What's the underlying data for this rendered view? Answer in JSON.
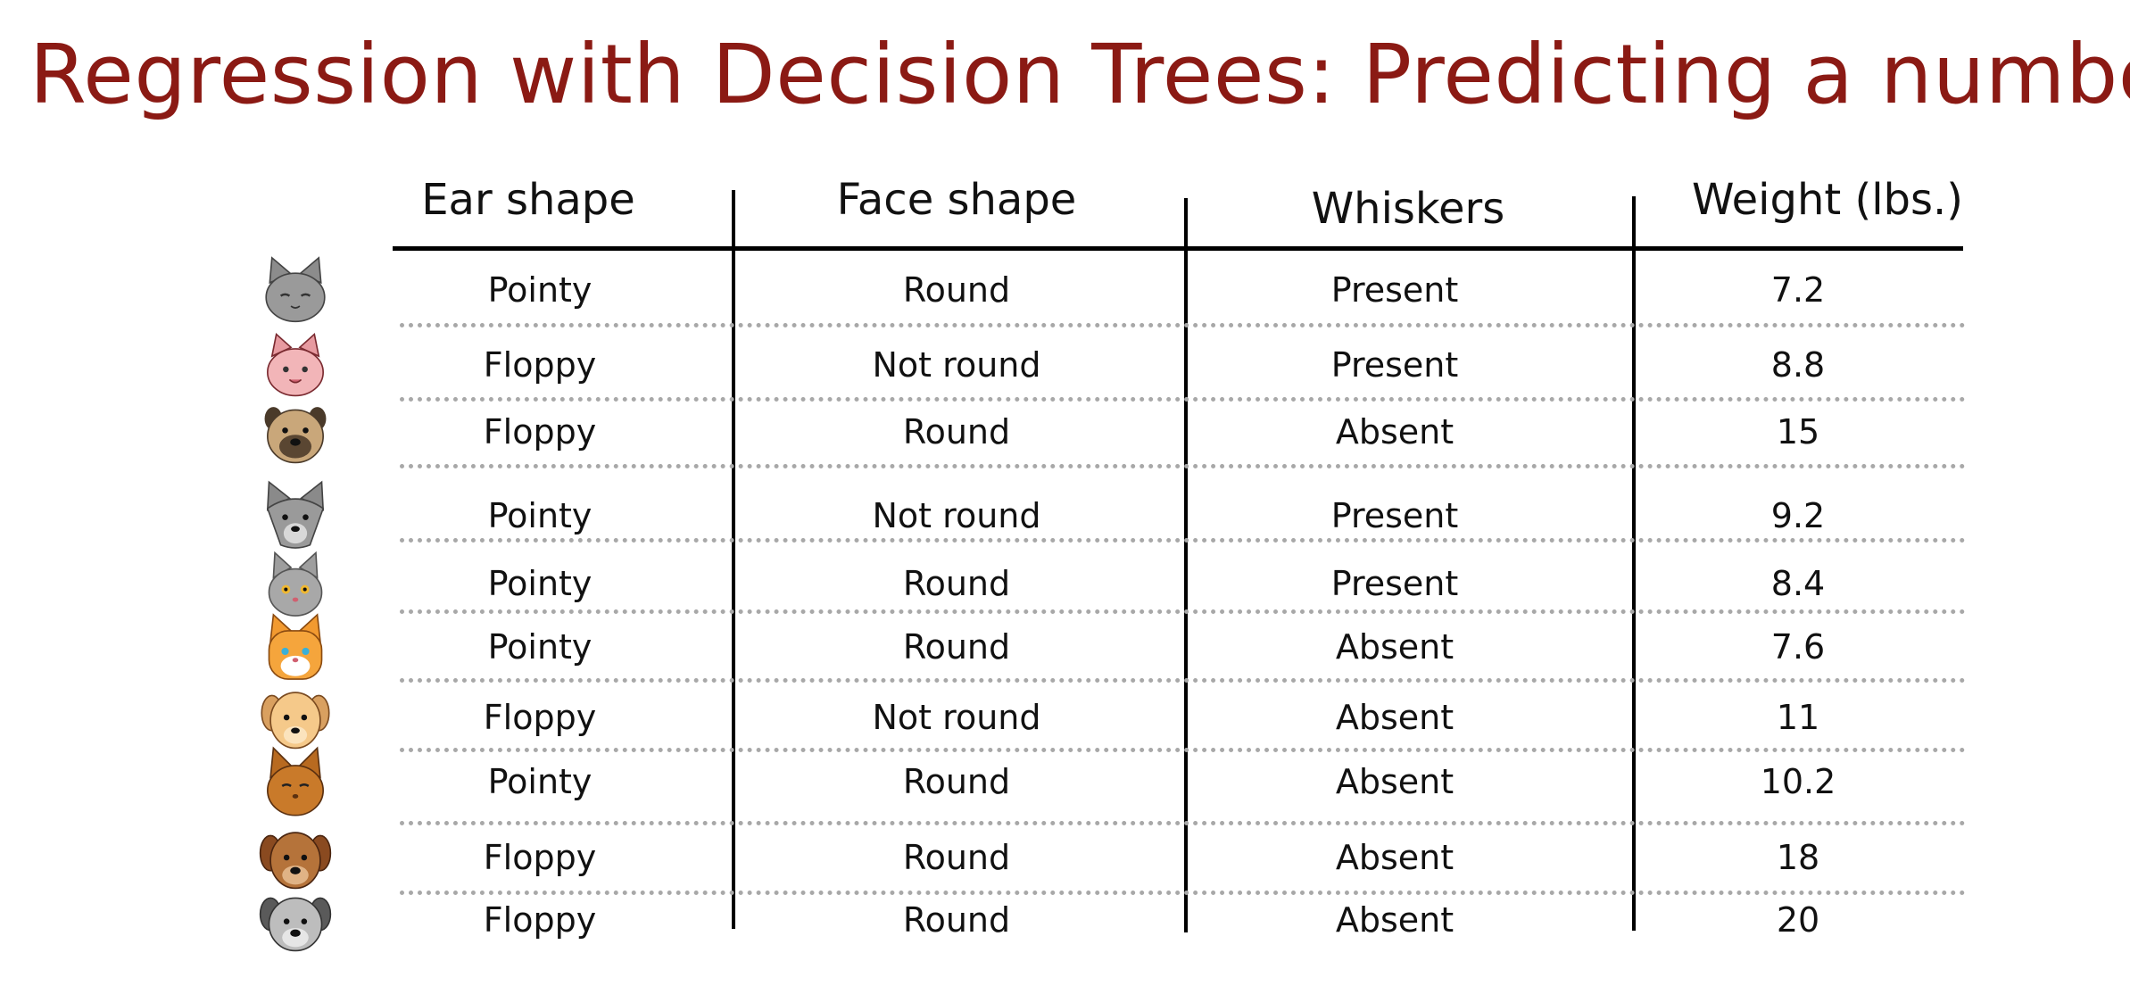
{
  "title": "Regression with Decision Trees: Predicting a number",
  "table": {
    "headers": [
      "Ear shape",
      "Face shape",
      "Whiskers",
      "Weight (lbs.)"
    ],
    "rows": [
      {
        "icon": "gray-cat-icon",
        "ear": "Pointy",
        "face": "Round",
        "whiskers": "Present",
        "weight": "7.2"
      },
      {
        "icon": "pink-cat-icon",
        "ear": "Floppy",
        "face": "Not round",
        "whiskers": "Present",
        "weight": "8.8"
      },
      {
        "icon": "pug-dog-icon",
        "ear": "Floppy",
        "face": "Round",
        "whiskers": "Absent",
        "weight": "15"
      },
      {
        "icon": "gray-wolf-dog-icon",
        "ear": "Pointy",
        "face": "Not round",
        "whiskers": "Present",
        "weight": "9.2"
      },
      {
        "icon": "gray-kitten-icon",
        "ear": "Pointy",
        "face": "Round",
        "whiskers": "Present",
        "weight": "8.4"
      },
      {
        "icon": "orange-cat-icon",
        "ear": "Pointy",
        "face": "Round",
        "whiskers": "Absent",
        "weight": "7.6"
      },
      {
        "icon": "tan-dog-icon",
        "ear": "Floppy",
        "face": "Not round",
        "whiskers": "Absent",
        "weight": "11"
      },
      {
        "icon": "brown-cat-icon",
        "ear": "Pointy",
        "face": "Round",
        "whiskers": "Absent",
        "weight": "10.2"
      },
      {
        "icon": "brown-dog-icon",
        "ear": "Floppy",
        "face": "Round",
        "whiskers": "Absent",
        "weight": "18"
      },
      {
        "icon": "gray-dog-icon",
        "ear": "Floppy",
        "face": "Round",
        "whiskers": "Absent",
        "weight": "20"
      }
    ]
  },
  "colors": {
    "title": "#8b1a14",
    "text": "#111111",
    "rule": "#000000",
    "dotted_separator": "#a8a8a8"
  }
}
